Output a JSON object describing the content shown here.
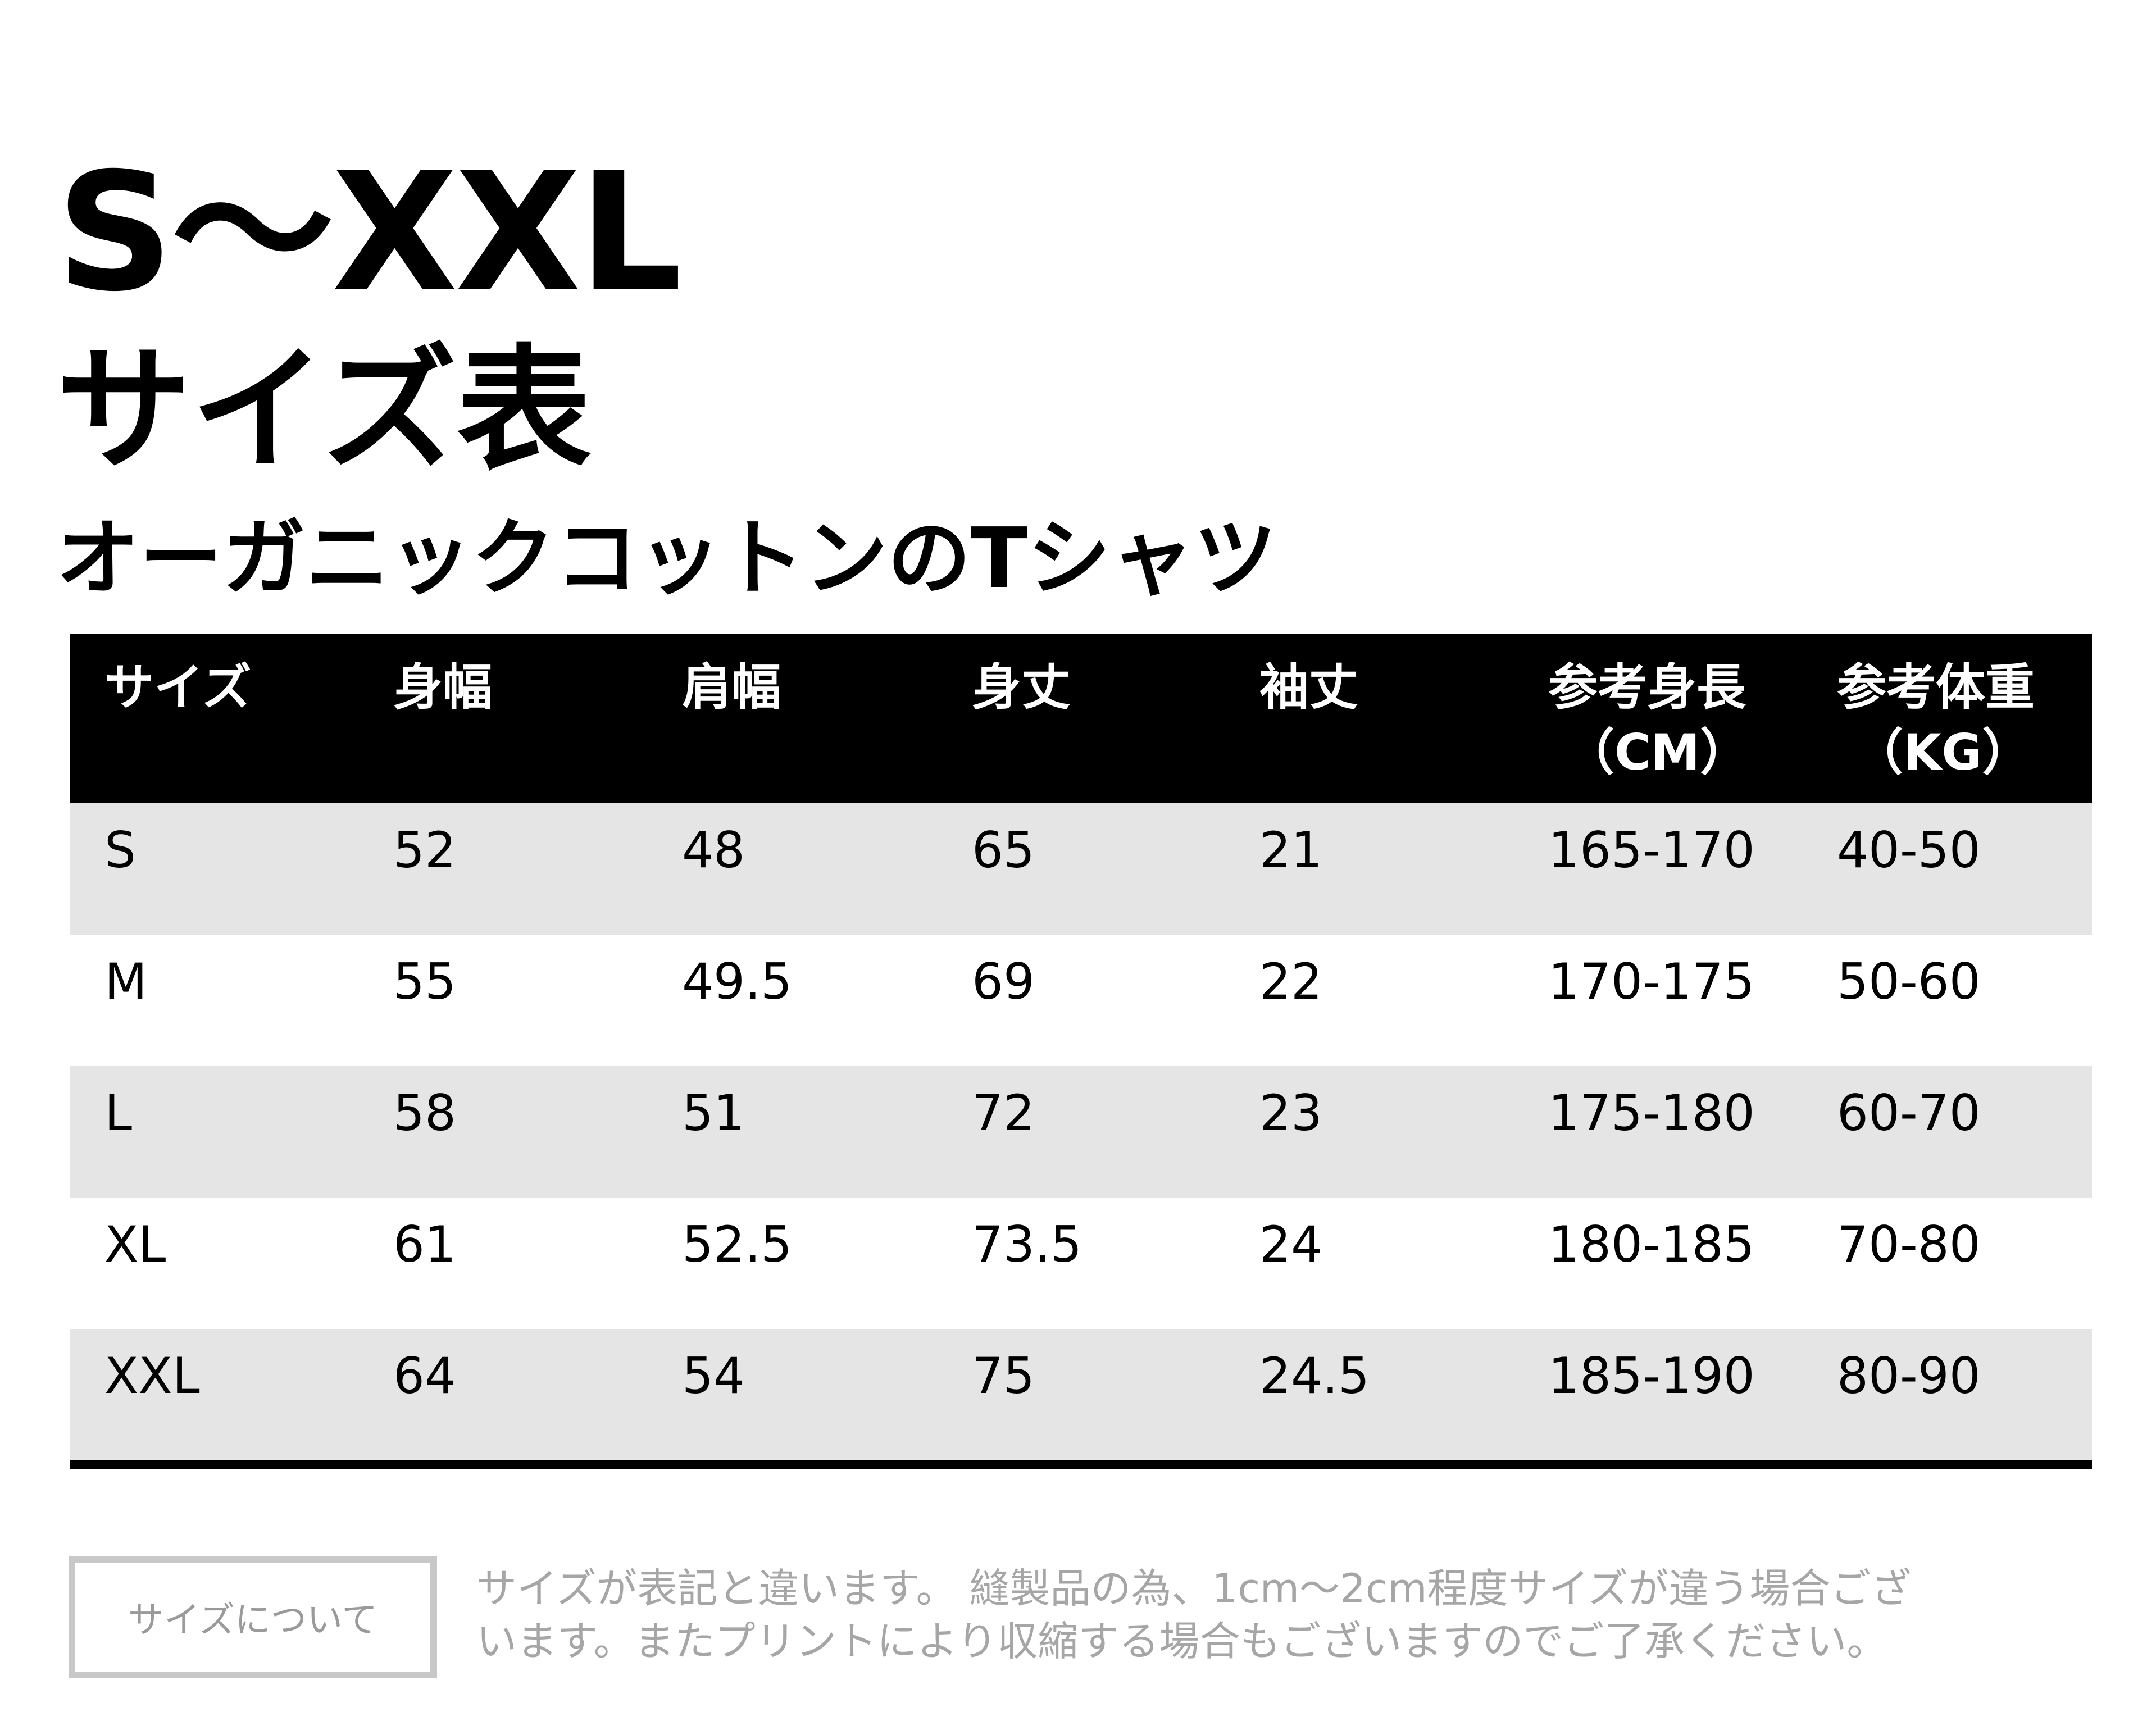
{
  "title": {
    "line1": "S～XXL",
    "line2": "サイズ表",
    "line3": "オーガニックコットンのTシャツ"
  },
  "table": {
    "headers": [
      {
        "line1": "サイズ",
        "line2": ""
      },
      {
        "line1": "身幅",
        "line2": ""
      },
      {
        "line1": "肩幅",
        "line2": ""
      },
      {
        "line1": "身丈",
        "line2": ""
      },
      {
        "line1": "袖丈",
        "line2": ""
      },
      {
        "line1": "参考身長",
        "line2": "（CM）"
      },
      {
        "line1": "参考体重",
        "line2": "（KG）"
      }
    ],
    "rows": [
      [
        "S",
        "52",
        "48",
        "65",
        "21",
        "165-170",
        "40-50"
      ],
      [
        "M",
        "55",
        "49.5",
        "69",
        "22",
        "170-175",
        "50-60"
      ],
      [
        "L",
        "58",
        "51",
        "72",
        "23",
        "175-180",
        "60-70"
      ],
      [
        "XL",
        "61",
        "52.5",
        "73.5",
        "24",
        "180-185",
        "70-80"
      ],
      [
        "XXL",
        "64",
        "54",
        "75",
        "24.5",
        "185-190",
        "80-90"
      ]
    ]
  },
  "note": {
    "button_label": "サイズについて",
    "line1": "サイズが表記と違います。 縫製品の為、1cm～2cm程度サイズが違う場合ござ",
    "line2": "います。またプリントにより収縮する場合もございますのでご了承ください。"
  },
  "colors": {
    "header_bg": "#000000",
    "header_text": "#ffffff",
    "shaded_row": "#e5e5e5",
    "note_text": "#a6a6a6",
    "note_border": "#c8c8c8"
  }
}
